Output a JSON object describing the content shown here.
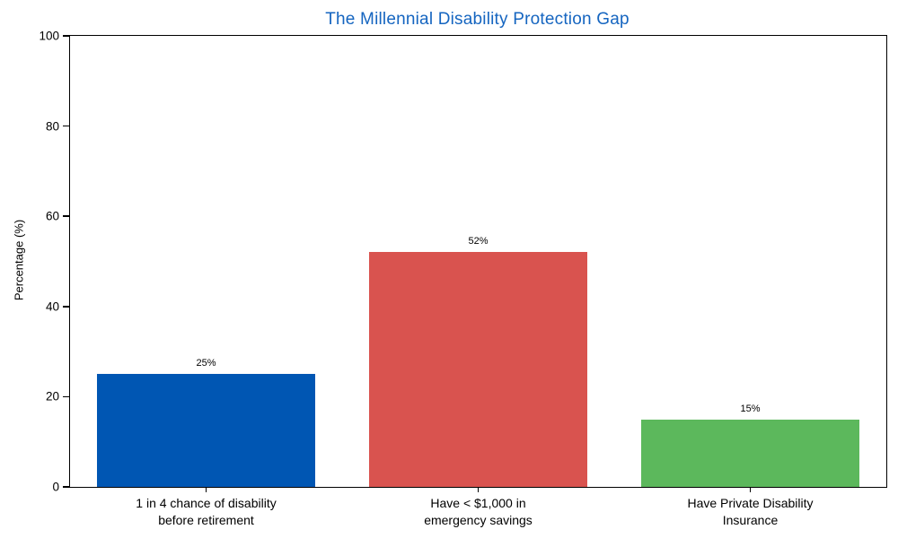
{
  "chart_data": {
    "type": "bar",
    "title": "The Millennial Disability Protection Gap",
    "title_color": "#1565c0",
    "xlabel": "",
    "ylabel": "Percentage (%)",
    "ylim": [
      0,
      100
    ],
    "yticks": [
      0,
      20,
      40,
      60,
      80,
      100
    ],
    "grid": false,
    "legend": null,
    "categories": [
      "1 in 4 chance of disability\nbefore retirement",
      "Have < $1,000 in\nemergency savings",
      "Have Private Disability\nInsurance"
    ],
    "values": [
      25,
      52,
      15
    ],
    "value_labels": [
      "25%",
      "52%",
      "15%"
    ],
    "bar_colors": [
      "#0056b3",
      "#d9534f",
      "#5cb85c"
    ],
    "bar_width_fraction": 0.8,
    "axis_color": "#000000",
    "background_color": "#ffffff"
  }
}
